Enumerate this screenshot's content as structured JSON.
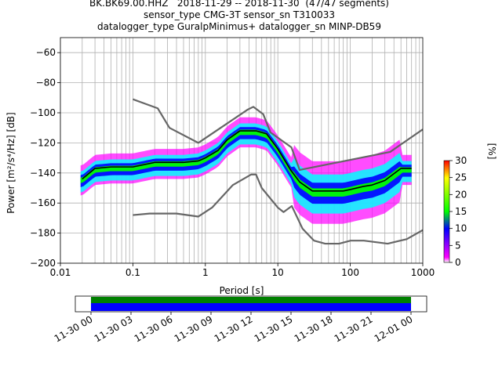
{
  "title_lines": [
    "BK.BK69.00.HHZ   2018-11-29 -- 2018-11-30  (47/47 segments)",
    "sensor_type CMG-3T sensor_sn T310033",
    "datalogger_type GuralpMinimus+ datalogger_sn MINP-DB59"
  ],
  "chart_data": [
    {
      "type": "heatmap",
      "xlabel": "Period [s]",
      "ylabel": "Power [m²/s⁴/Hz] [dB]",
      "xscale": "log",
      "xlim": [
        0.01,
        1000
      ],
      "ylim": [
        -200,
        -50
      ],
      "xticks": [
        0.01,
        0.1,
        1,
        10,
        100,
        1000
      ],
      "xtick_labels": [
        "0.01",
        "0.1",
        "1",
        "10",
        "100",
        "1000"
      ],
      "yticks": [
        -200,
        -180,
        -160,
        -140,
        -120,
        -100,
        -80,
        -60
      ],
      "ytick_labels": [
        "−200",
        "−180",
        "−160",
        "−140",
        "−120",
        "−100",
        "−80",
        "−60"
      ],
      "grid": true,
      "colorbar": {
        "label": "[%]",
        "range": [
          0,
          30
        ],
        "ticks": [
          0,
          5,
          10,
          15,
          20,
          25,
          30
        ],
        "tick_labels": [
          "0",
          "5",
          "10",
          "15",
          "20",
          "25",
          "30"
        ],
        "colors": [
          "#ffffff",
          "#ff00ff",
          "#0000ff",
          "#00ff00",
          "#ffff00",
          "#ff0000"
        ]
      },
      "series": [
        {
          "role": "mean",
          "color": "#000000",
          "x": [
            0.02,
            0.03,
            0.05,
            0.1,
            0.2,
            0.3,
            0.5,
            0.8,
            1.0,
            1.5,
            2.0,
            3.0,
            4.0,
            5.0,
            7.0,
            10,
            15,
            20,
            30,
            50,
            80,
            100,
            150,
            200,
            300,
            500,
            700
          ],
          "y": [
            -144,
            -137,
            -136,
            -136,
            -133,
            -133,
            -133,
            -132,
            -130,
            -125,
            -118,
            -112,
            -112,
            -112,
            -114,
            -124,
            -138,
            -146,
            -152,
            -152,
            -152,
            -151,
            -149,
            -148,
            -145,
            -137,
            -137
          ]
        },
        {
          "role": "noise-model-high",
          "color": "#666666",
          "x": [
            0.1,
            0.22,
            0.32,
            0.8,
            3.8,
            4.6,
            6.3,
            7.9,
            15.4,
            20,
            354.8,
            1000
          ],
          "y": [
            -91,
            -97,
            -110,
            -120,
            -98,
            -96,
            -101,
            -113,
            -123,
            -138,
            -126,
            -111
          ]
        },
        {
          "role": "noise-model-low",
          "color": "#666666",
          "x": [
            0.1,
            0.17,
            0.4,
            0.8,
            1.24,
            2.4,
            4.3,
            5.0,
            6.0,
            10,
            12,
            15.6,
            21.9,
            31.6,
            45,
            70,
            101,
            154,
            328,
            600,
            1000
          ],
          "y": [
            -168,
            -167,
            -167,
            -169,
            -163,
            -148,
            -141,
            -141,
            -150,
            -163,
            -166,
            -162,
            -177,
            -185,
            -187,
            -187,
            -185,
            -185,
            -187,
            -184,
            -178
          ]
        }
      ]
    },
    {
      "type": "timeline",
      "tick_labels": [
        "11-30 00",
        "11-30 03",
        "11-30 06",
        "11-30 09",
        "11-30 12",
        "11-30 15",
        "11-30 18",
        "11-30 21",
        "12-01 00"
      ],
      "coverage": [
        {
          "from": "11-30 00",
          "to": "12-01 00",
          "color": "#008000"
        },
        {
          "from": "11-30 00",
          "to": "12-01 00",
          "color": "#0000ff"
        }
      ]
    }
  ]
}
